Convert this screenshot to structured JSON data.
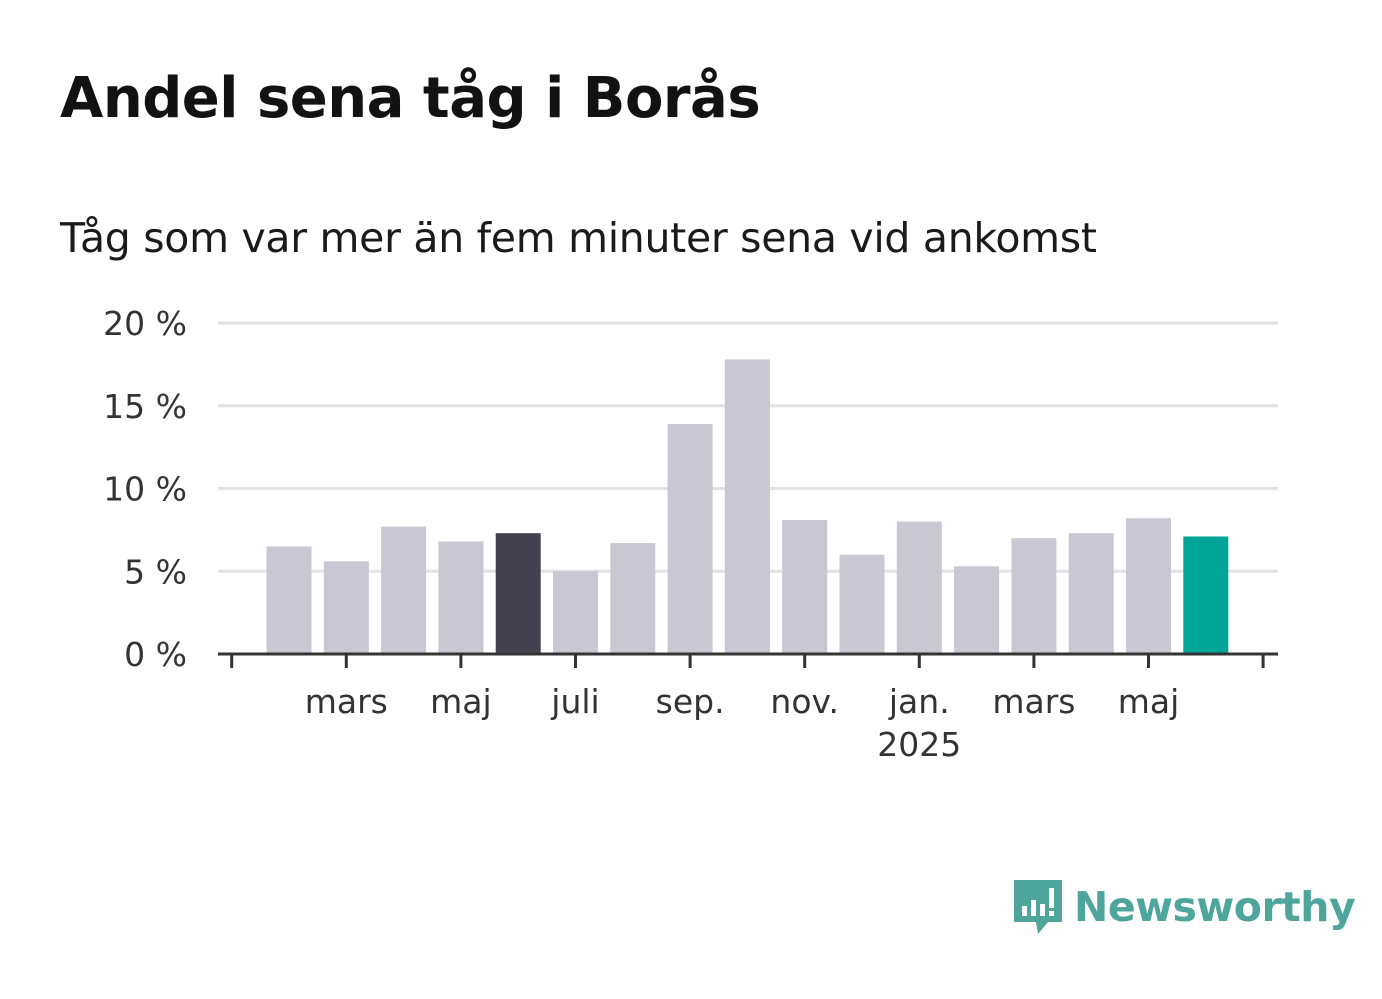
{
  "header": {
    "title": "Andel sena tåg i Borås",
    "subtitle": "Tåg som var mer än fem minuter sena vid ankomst"
  },
  "brand": {
    "name": "Newsworthy",
    "icon": "bar-chart-speech-bubble-icon",
    "color": "#4ea59c"
  },
  "colors": {
    "bar_default": "#c8c7d2",
    "bar_highlight": "#43414d",
    "bar_latest": "#00a598",
    "grid": "#e2e2e2",
    "axis": "#333333"
  },
  "chart_data": {
    "type": "bar",
    "title": "Andel sena tåg i Borås",
    "subtitle": "Tåg som var mer än fem minuter sena vid ankomst",
    "x": [
      "2024-02",
      "2024-03",
      "2024-04",
      "2024-05",
      "2024-06",
      "2024-07",
      "2024-08",
      "2024-09",
      "2024-10",
      "2024-11",
      "2024-12",
      "2025-01",
      "2025-02",
      "2025-03",
      "2025-04",
      "2025-05",
      "2025-06"
    ],
    "values": [
      6.5,
      5.6,
      7.7,
      6.8,
      7.3,
      5.0,
      6.7,
      13.9,
      17.8,
      8.1,
      6.0,
      8.0,
      5.3,
      7.0,
      7.3,
      8.2,
      7.1
    ],
    "highlight": {
      "2024-06": "dark",
      "2025-06": "teal"
    },
    "ylim": [
      0,
      20
    ],
    "y_ticks": [
      0,
      5,
      10,
      15,
      20
    ],
    "y_tick_labels": [
      "0 %",
      "5 %",
      "10 %",
      "15 %",
      "20 %"
    ],
    "x_tick_labels": [
      {
        "month": "2024-03",
        "label": "mars"
      },
      {
        "month": "2024-05",
        "label": "maj"
      },
      {
        "month": "2024-07",
        "label": "juli"
      },
      {
        "month": "2024-09",
        "label": "sep."
      },
      {
        "month": "2024-11",
        "label": "nov."
      },
      {
        "month": "2025-01",
        "label": "jan.",
        "sublabel": "2025"
      },
      {
        "month": "2025-03",
        "label": "mars"
      },
      {
        "month": "2025-05",
        "label": "maj"
      }
    ],
    "xlabel": "",
    "ylabel": "",
    "grid": true,
    "legend": "none"
  }
}
